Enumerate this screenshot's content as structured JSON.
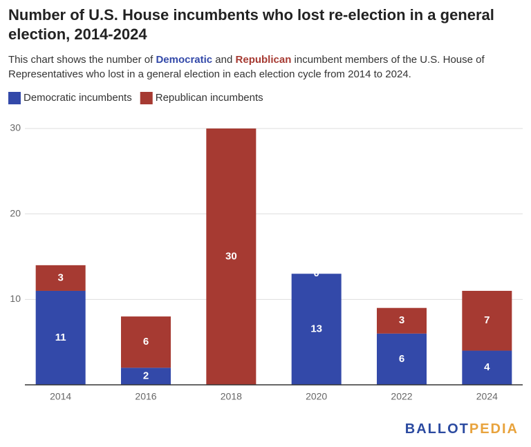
{
  "chart_data": {
    "type": "stacked_bar",
    "title": "Number of U.S. House incumbents who lost re-election in a general election, 2014-2024",
    "subtitle": [
      "This chart shows the number of ",
      "Democratic",
      " and ",
      "Republican",
      " incumbent members of the U.S. House of Representatives who lost in a general election in each election cycle from 2014 to 2024."
    ],
    "categories": [
      "2014",
      "2016",
      "2018",
      "2020",
      "2022",
      "2024"
    ],
    "series": [
      {
        "name": "Democratic incumbents",
        "color": "#3349a9",
        "values": [
          11,
          2,
          0,
          13,
          6,
          4
        ]
      },
      {
        "name": "Republican incumbents",
        "color": "#a63a32",
        "values": [
          3,
          6,
          30,
          0,
          3,
          7
        ]
      }
    ],
    "ylim": [
      0,
      30
    ],
    "yticks": [
      10,
      20,
      30
    ],
    "grid": true,
    "logo": [
      "BALLOT",
      "PEDIA"
    ]
  }
}
